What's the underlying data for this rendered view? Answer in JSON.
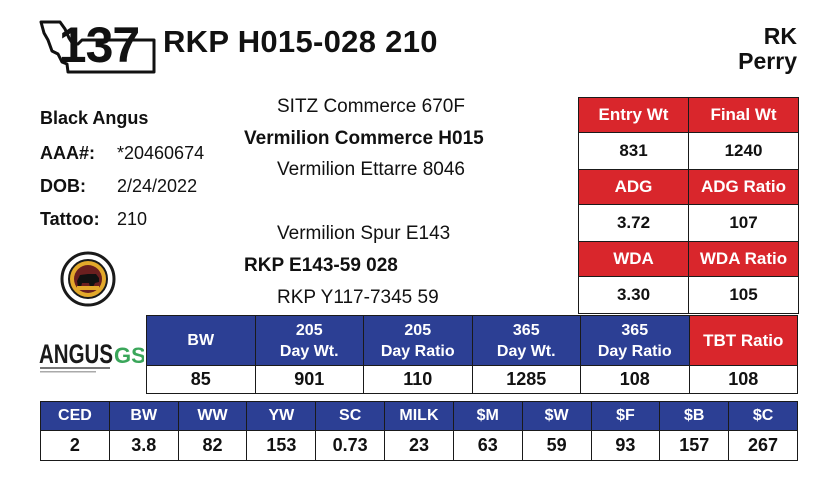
{
  "lot": {
    "number": "137"
  },
  "animal": {
    "name": "RKP H015-028 210"
  },
  "seller": {
    "line1": "RK",
    "line2": "Perry"
  },
  "info": {
    "breed": "Black Angus",
    "aaa_label": "AAA#:",
    "aaa_value": "*20460674",
    "dob_label": "DOB:",
    "dob_value": "2/24/2022",
    "tattoo_label": "Tattoo:",
    "tattoo_value": "210"
  },
  "pedigree": {
    "sire_sire": "SITZ Commerce 670F",
    "sire": "Vermilion Commerce H015",
    "sire_dam": "Vermilion Ettarre 8046",
    "dam_sire": "Vermilion Spur E143",
    "dam": "RKP E143-59 028",
    "dam_dam": "RKP Y117-7345 59"
  },
  "weights": {
    "rows": [
      {
        "headers": [
          "Entry Wt",
          "Final Wt"
        ],
        "values": [
          "831",
          "1240"
        ]
      },
      {
        "headers": [
          "ADG",
          "ADG Ratio"
        ],
        "values": [
          "3.72",
          "107"
        ]
      },
      {
        "headers": [
          "WDA",
          "WDA Ratio"
        ],
        "values": [
          "3.30",
          "105"
        ]
      }
    ]
  },
  "performance": {
    "headers": [
      {
        "l1": "BW",
        "l2": ""
      },
      {
        "l1": "205",
        "l2": "Day Wt."
      },
      {
        "l1": "205",
        "l2": "Day Ratio"
      },
      {
        "l1": "365",
        "l2": "Day Wt."
      },
      {
        "l1": "365",
        "l2": "Day Ratio"
      },
      {
        "l1": "TBT Ratio",
        "l2": ""
      }
    ],
    "values": [
      "85",
      "901",
      "110",
      "1285",
      "108",
      "108"
    ]
  },
  "epds": {
    "headers": [
      "CED",
      "BW",
      "WW",
      "YW",
      "SC",
      "MILK",
      "$M",
      "$W",
      "$F",
      "$B",
      "$C"
    ],
    "values": [
      "2",
      "3.8",
      "82",
      "153",
      "0.73",
      "23",
      "63",
      "59",
      "93",
      "157",
      "267"
    ]
  },
  "logos": {
    "angus_text": "ANGUS",
    "angus_suffix": "GS"
  },
  "colors": {
    "red": "#d9262c",
    "blue": "#2c3f94"
  }
}
